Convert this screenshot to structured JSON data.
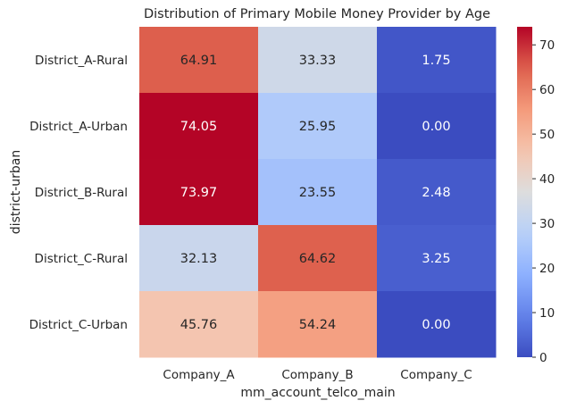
{
  "chart_data": {
    "type": "heatmap",
    "title": "Distribution of Primary Mobile Money Provider by Age",
    "xlabel": "mm_account_telco_main",
    "ylabel": "district-urban",
    "x_categories": [
      "Company_A",
      "Company_B",
      "Company_C"
    ],
    "y_categories": [
      "District_A-Rural",
      "District_A-Urban",
      "District_B-Rural",
      "District_C-Rural",
      "District_C-Urban"
    ],
    "values": [
      [
        64.91,
        33.33,
        1.75
      ],
      [
        74.05,
        25.95,
        0.0
      ],
      [
        73.97,
        23.55,
        2.48
      ],
      [
        32.13,
        64.62,
        3.25
      ],
      [
        45.76,
        54.24,
        0.0
      ]
    ],
    "cell_labels": [
      [
        "64.91",
        "33.33",
        "1.75"
      ],
      [
        "74.05",
        "25.95",
        "0.00"
      ],
      [
        "73.97",
        "23.55",
        "2.48"
      ],
      [
        "32.13",
        "64.62",
        "3.25"
      ],
      [
        "45.76",
        "54.24",
        "0.00"
      ]
    ],
    "colormap": "coolwarm",
    "vmin": 0,
    "vmax": 74.05,
    "colorbar_ticks": [
      0,
      10,
      20,
      30,
      40,
      50,
      60,
      70
    ],
    "colorbar_tick_labels": [
      "0",
      "10",
      "20",
      "30",
      "40",
      "50",
      "60",
      "70"
    ]
  }
}
